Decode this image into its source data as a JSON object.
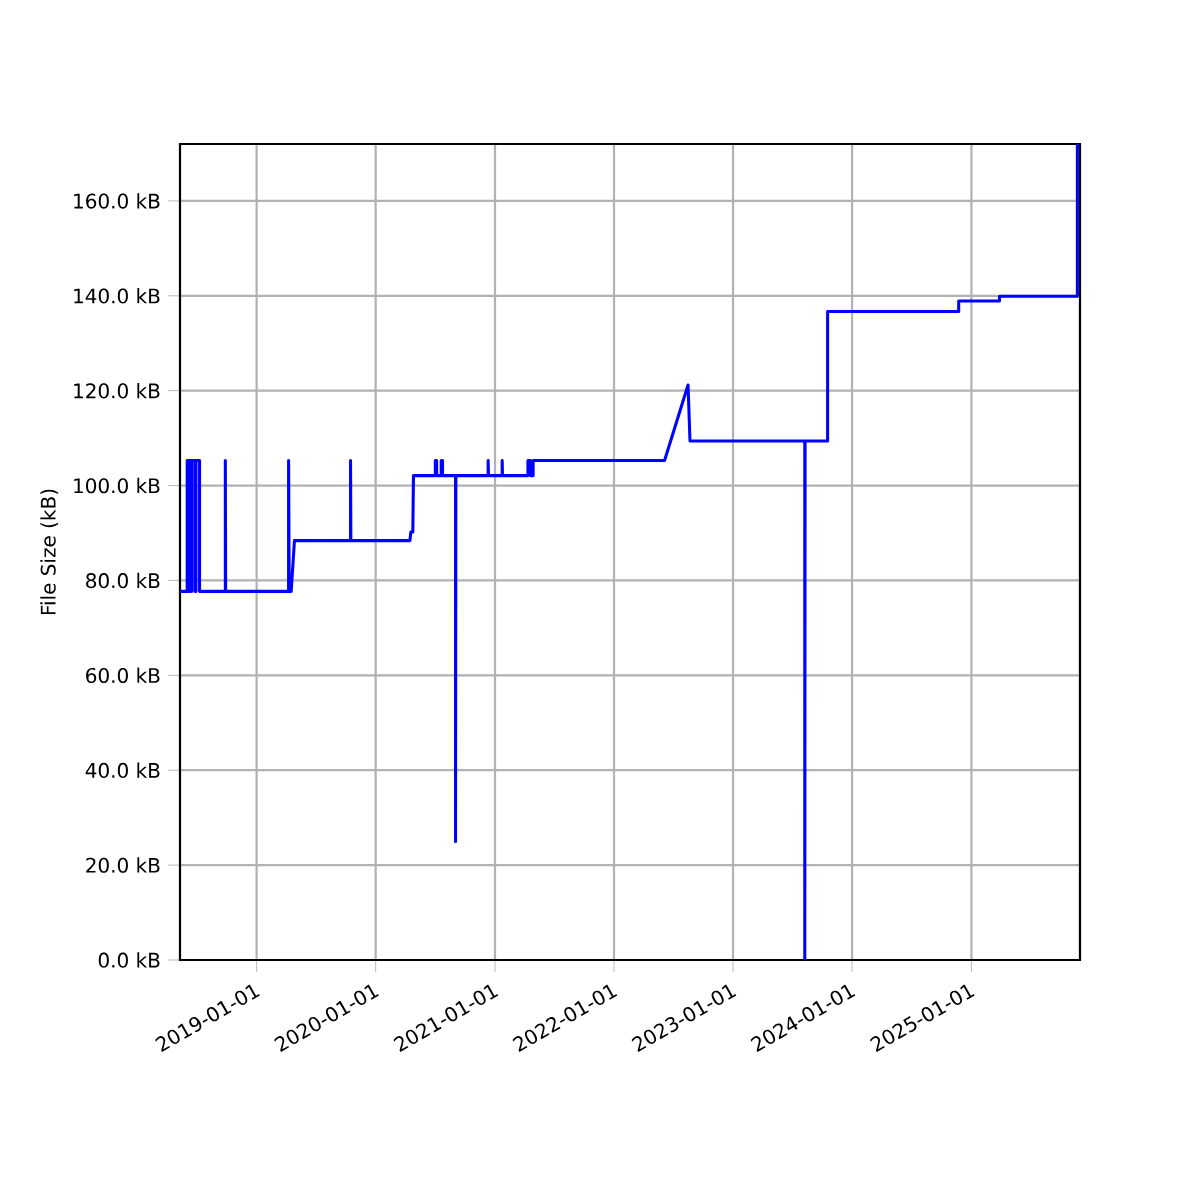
{
  "chart_data": {
    "type": "line",
    "ylabel": "File Size (kB)",
    "grid": true,
    "marker": "none",
    "line_style": "solid",
    "xlim": [
      "2018-05-11",
      "2025-11-30"
    ],
    "ylim": [
      0,
      172
    ],
    "xticks": [
      "2019-01-01",
      "2020-01-01",
      "2021-01-01",
      "2022-01-01",
      "2023-01-01",
      "2024-01-01",
      "2025-01-01"
    ],
    "yticks": [
      {
        "value": 0,
        "label": "0.0 kB"
      },
      {
        "value": 20,
        "label": "20.0 kB"
      },
      {
        "value": 40,
        "label": "40.0 kB"
      },
      {
        "value": 60,
        "label": "60.0 kB"
      },
      {
        "value": 80,
        "label": "80.0 kB"
      },
      {
        "value": 100,
        "label": "100.0 kB"
      },
      {
        "value": 120,
        "label": "120.0 kB"
      },
      {
        "value": 140,
        "label": "140.0 kB"
      },
      {
        "value": 160,
        "label": "160.0 kB"
      }
    ],
    "x": [
      "2018-05-11",
      "2018-06-02",
      "2018-06-02",
      "2018-06-05",
      "2018-06-05",
      "2018-06-08",
      "2018-06-08",
      "2018-06-14",
      "2018-06-14",
      "2018-06-16",
      "2018-06-16",
      "2018-06-26",
      "2018-06-26",
      "2018-06-29",
      "2018-06-29",
      "2018-07-10",
      "2018-07-10",
      "2018-09-27",
      "2018-09-27",
      "2018-09-28",
      "2019-04-09",
      "2019-04-09",
      "2019-04-11",
      "2019-04-17",
      "2019-04-27",
      "2019-10-16",
      "2019-10-16",
      "2019-10-17",
      "2020-04-15",
      "2020-04-18",
      "2020-04-24",
      "2020-04-26",
      "2020-07-02",
      "2020-07-02",
      "2020-07-06",
      "2020-07-06",
      "2020-07-20",
      "2020-07-20",
      "2020-07-24",
      "2020-07-24",
      "2020-09-02",
      "2020-09-02",
      "2020-09-03",
      "2020-12-11",
      "2020-12-11",
      "2020-12-12",
      "2021-01-23",
      "2021-01-23",
      "2021-01-24",
      "2021-04-12",
      "2021-04-12",
      "2021-04-20",
      "2021-04-20",
      "2021-04-28",
      "2021-04-28",
      "2022-06-05",
      "2022-08-16",
      "2022-08-22",
      "2023-08-09",
      "2023-08-09",
      "2023-08-10",
      "2023-10-18",
      "2023-10-18",
      "2024-11-23",
      "2024-11-23",
      "2025-03-28",
      "2025-03-28",
      "2025-11-22",
      "2025-11-22"
    ],
    "series": [
      {
        "color": "#0000ff",
        "values": [
          77.7,
          77.7,
          105.3,
          105.3,
          77.7,
          77.7,
          105.3,
          105.3,
          77.7,
          77.7,
          105.3,
          105.3,
          77.7,
          77.7,
          105.3,
          105.3,
          77.7,
          77.7,
          105.3,
          77.7,
          77.7,
          105.3,
          77.7,
          77.7,
          88.4,
          88.4,
          105.3,
          88.4,
          88.4,
          90.2,
          90.2,
          102.1,
          102.1,
          105.3,
          105.3,
          102.1,
          102.1,
          105.3,
          105.3,
          102.1,
          102.1,
          25.0,
          102.1,
          102.1,
          105.3,
          102.1,
          102.1,
          105.3,
          102.1,
          102.1,
          105.3,
          105.3,
          102.1,
          102.1,
          105.3,
          105.3,
          121.2,
          109.4,
          109.4,
          0,
          109.4,
          109.4,
          136.7,
          136.7,
          138.9,
          138.9,
          139.9,
          139.9,
          172
        ]
      }
    ]
  }
}
